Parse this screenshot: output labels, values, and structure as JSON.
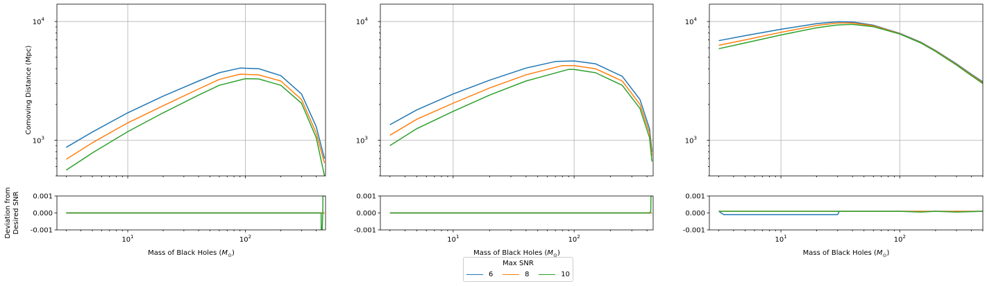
{
  "chart_data": [
    {
      "type": "line",
      "panel": "top-left",
      "xlabel": "",
      "ylabel": "Comoving Distance (Mpc)",
      "xscale": "log",
      "yscale": "log",
      "xlim": [
        2.5,
        480
      ],
      "ylim": [
        500,
        14000
      ],
      "xticks": [
        "10^1",
        "10^2"
      ],
      "yticks": [
        "10^3",
        "10^4"
      ],
      "grid": true,
      "series": [
        {
          "name": "6",
          "x": [
            3,
            5,
            10,
            20,
            40,
            60,
            90,
            130,
            200,
            300,
            400,
            470
          ],
          "y": [
            870,
            1170,
            1700,
            2350,
            3150,
            3700,
            4050,
            4000,
            3500,
            2450,
            1300,
            700
          ]
        },
        {
          "name": "8",
          "x": [
            3,
            5,
            10,
            20,
            40,
            60,
            90,
            130,
            200,
            300,
            400,
            470
          ],
          "y": [
            690,
            950,
            1400,
            1950,
            2700,
            3250,
            3600,
            3550,
            3150,
            2200,
            1150,
            640
          ]
        },
        {
          "name": "10",
          "x": [
            3,
            5,
            10,
            20,
            40,
            60,
            100,
            130,
            200,
            300,
            400,
            470
          ],
          "y": [
            560,
            780,
            1180,
            1700,
            2400,
            2900,
            3300,
            3280,
            2900,
            2050,
            1050,
            500
          ]
        }
      ]
    },
    {
      "type": "line",
      "panel": "bottom-left",
      "xlabel": "Mass of Black Holes ($M_\\odot$)",
      "ylabel": "Deviation from\nDesired SNR",
      "xscale": "log",
      "xlim": [
        2.5,
        480
      ],
      "ylim": [
        -0.001,
        0.001
      ],
      "xticks": [
        "10^1",
        "10^2"
      ],
      "yticks": [
        "0.001",
        "0.000",
        "-0.001"
      ],
      "grid": false,
      "series": [
        {
          "name": "6",
          "x": [
            3,
            10,
            100,
            400,
            470
          ],
          "y": [
            0,
            0,
            0,
            0,
            0
          ]
        },
        {
          "name": "8",
          "x": [
            3,
            10,
            100,
            400,
            470
          ],
          "y": [
            0,
            0,
            0,
            0,
            0
          ]
        },
        {
          "name": "10",
          "x": [
            3,
            10,
            100,
            400,
            440,
            441,
            450,
            455,
            456,
            470
          ],
          "y": [
            0,
            0,
            0,
            0,
            0,
            -0.001,
            -0.001,
            0,
            0.001,
            0.001
          ]
        }
      ]
    },
    {
      "type": "line",
      "panel": "top-middle",
      "xlabel": "",
      "ylabel": "",
      "xscale": "log",
      "yscale": "log",
      "xlim": [
        2.5,
        450
      ],
      "ylim": [
        500,
        14000
      ],
      "xticks": [
        "10^1",
        "10^2"
      ],
      "yticks": [
        "10^3",
        "10^4"
      ],
      "grid": true,
      "series": [
        {
          "name": "6",
          "x": [
            3,
            5,
            10,
            20,
            40,
            70,
            100,
            150,
            250,
            350,
            420,
            440
          ],
          "y": [
            1350,
            1800,
            2450,
            3200,
            4050,
            4600,
            4650,
            4400,
            3450,
            2200,
            1250,
            800
          ]
        },
        {
          "name": "8",
          "x": [
            3,
            5,
            10,
            20,
            40,
            80,
            100,
            150,
            250,
            350,
            420,
            440
          ],
          "y": [
            1100,
            1500,
            2050,
            2750,
            3550,
            4250,
            4250,
            4000,
            3150,
            2000,
            1150,
            740
          ]
        },
        {
          "name": "10",
          "x": [
            3,
            5,
            10,
            20,
            40,
            90,
            100,
            150,
            250,
            350,
            420,
            440
          ],
          "y": [
            900,
            1250,
            1750,
            2400,
            3150,
            3950,
            3950,
            3700,
            2900,
            1850,
            1050,
            660
          ]
        }
      ]
    },
    {
      "type": "line",
      "panel": "bottom-middle",
      "xlabel": "Mass of Black Holes ($M_\\odot$)",
      "ylabel": "",
      "xscale": "log",
      "xlim": [
        2.5,
        450
      ],
      "ylim": [
        -0.001,
        0.001
      ],
      "xticks": [
        "10^1",
        "10^2"
      ],
      "yticks": [
        "0.001",
        "0.000",
        "-0.001"
      ],
      "grid": false,
      "series": [
        {
          "name": "6",
          "x": [
            3,
            10,
            100,
            440
          ],
          "y": [
            0,
            0,
            0,
            0
          ]
        },
        {
          "name": "8",
          "x": [
            3,
            10,
            100,
            440
          ],
          "y": [
            0,
            0,
            0,
            0
          ]
        },
        {
          "name": "10",
          "x": [
            3,
            10,
            100,
            400,
            420,
            430,
            432,
            440
          ],
          "y": [
            0,
            0,
            0,
            0,
            0,
            0.0001,
            0.001,
            0.001
          ]
        }
      ]
    },
    {
      "type": "line",
      "panel": "top-right",
      "xlabel": "",
      "ylabel": "",
      "xscale": "log",
      "yscale": "log",
      "xlim": [
        2.5,
        500
      ],
      "ylim": [
        500,
        14000
      ],
      "xticks": [
        "10^1",
        "10^2"
      ],
      "yticks": [
        "10^3",
        "10^4"
      ],
      "grid": true,
      "series": [
        {
          "name": "6",
          "x": [
            3,
            5,
            10,
            20,
            30,
            40,
            60,
            100,
            150,
            200,
            300,
            400,
            500
          ],
          "y": [
            6900,
            7600,
            8600,
            9600,
            9950,
            9900,
            9300,
            7950,
            6700,
            5700,
            4400,
            3600,
            3100
          ]
        },
        {
          "name": "8",
          "x": [
            3,
            5,
            10,
            20,
            30,
            40,
            60,
            100,
            150,
            200,
            300,
            400,
            500
          ],
          "y": [
            6300,
            7000,
            8100,
            9250,
            9700,
            9700,
            9200,
            7900,
            6650,
            5650,
            4350,
            3550,
            3050
          ]
        },
        {
          "name": "10",
          "x": [
            3,
            5,
            10,
            20,
            30,
            40,
            60,
            100,
            150,
            200,
            300,
            400,
            500
          ],
          "y": [
            5900,
            6600,
            7700,
            8850,
            9350,
            9450,
            9050,
            7850,
            6600,
            5600,
            4300,
            3500,
            3000
          ]
        }
      ]
    },
    {
      "type": "line",
      "panel": "bottom-right",
      "xlabel": "Mass of Black Holes ($M_\\odot$)",
      "ylabel": "",
      "xscale": "log",
      "xlim": [
        2.5,
        500
      ],
      "ylim": [
        -0.001,
        0.001
      ],
      "xticks": [
        "10^1",
        "10^2"
      ],
      "yticks": [
        "0.001",
        "0.000",
        "-0.001"
      ],
      "grid": false,
      "series": [
        {
          "name": "6",
          "x": [
            3,
            3.3,
            10,
            20,
            30,
            31,
            100,
            300,
            500
          ],
          "y": [
            0.0001,
            -0.0001,
            -0.0001,
            -0.0001,
            -0.0001,
            0.0001,
            0.0001,
            0.0001,
            0.0001
          ]
        },
        {
          "name": "8",
          "x": [
            3,
            10,
            30,
            100,
            300,
            500
          ],
          "y": [
            0.0001,
            0.0001,
            0.0001,
            0.0001,
            0.0001,
            0.0001
          ]
        },
        {
          "name": "10",
          "x": [
            3,
            10,
            30,
            100,
            150,
            200,
            300,
            500
          ],
          "y": [
            0.0001,
            0.0001,
            0.0001,
            0.0001,
            5e-05,
            0.0001,
            5e-05,
            0.0001
          ]
        }
      ]
    }
  ],
  "legend": {
    "title": "Max SNR",
    "position": "bottom-center",
    "items": [
      {
        "label": "6",
        "color": "#1f77b4"
      },
      {
        "label": "8",
        "color": "#ff7f0e"
      },
      {
        "label": "10",
        "color": "#2ca02c"
      }
    ]
  },
  "colors": {
    "6": "#1f77b4",
    "8": "#ff7f0e",
    "10": "#2ca02c",
    "grid": "#b0b0b0"
  }
}
